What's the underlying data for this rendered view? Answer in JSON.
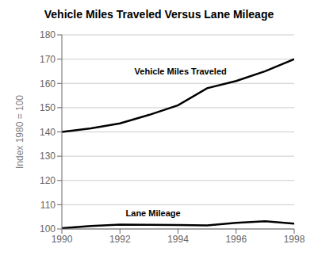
{
  "chart_data": {
    "type": "line",
    "title": "Vehicle Miles Traveled Versus Lane Mileage",
    "y_label": "Index 1980 = 100",
    "x": [
      1990,
      1991,
      1992,
      1993,
      1994,
      1995,
      1996,
      1997,
      1998
    ],
    "series": [
      {
        "color": "#000000",
        "values": [
          140,
          141.5,
          143.5,
          147,
          151,
          158,
          161,
          165,
          170
        ]
      },
      {
        "color": "#000000",
        "values": [
          100.3,
          101.2,
          101.8,
          101.7,
          101.6,
          101.5,
          102.5,
          103.2,
          102.2
        ]
      }
    ],
    "annotations": [
      {
        "text": "Vehicle Miles Traveled",
        "x": 1992.5,
        "y": 165,
        "color": "#000000"
      },
      {
        "text": "Lane Mileage",
        "x": 1992.2,
        "y": 106.5,
        "color": "#000000"
      }
    ],
    "xlim": [
      1990,
      1998
    ],
    "ylim": [
      100,
      180
    ],
    "xticks": [
      1990,
      1992,
      1994,
      1996,
      1998
    ],
    "yticks": [
      100,
      110,
      120,
      130,
      140,
      150,
      160,
      170,
      180
    ],
    "grid": true
  }
}
